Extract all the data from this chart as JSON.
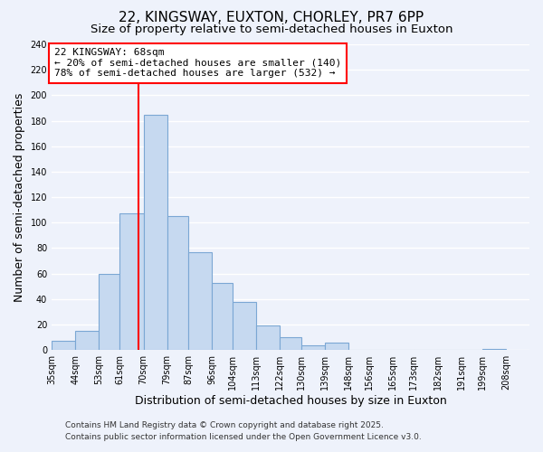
{
  "title1": "22, KINGSWAY, EUXTON, CHORLEY, PR7 6PP",
  "title2": "Size of property relative to semi-detached houses in Euxton",
  "xlabel": "Distribution of semi-detached houses by size in Euxton",
  "ylabel": "Number of semi-detached properties",
  "bar_left_edges": [
    35,
    44,
    53,
    61,
    70,
    79,
    87,
    96,
    104,
    113,
    122,
    130,
    139,
    148,
    156,
    165,
    173,
    182,
    191,
    199
  ],
  "bar_widths": [
    9,
    9,
    8,
    9,
    9,
    8,
    9,
    8,
    9,
    9,
    8,
    9,
    9,
    8,
    9,
    8,
    9,
    9,
    8,
    9
  ],
  "bar_heights": [
    7,
    15,
    60,
    107,
    185,
    105,
    77,
    53,
    38,
    19,
    10,
    4,
    6,
    0,
    0,
    0,
    0,
    0,
    0,
    1
  ],
  "bar_color": "#c6d9f0",
  "bar_edge_color": "#7ba7d4",
  "xtick_labels": [
    "35sqm",
    "44sqm",
    "53sqm",
    "61sqm",
    "70sqm",
    "79sqm",
    "87sqm",
    "96sqm",
    "104sqm",
    "113sqm",
    "122sqm",
    "130sqm",
    "139sqm",
    "148sqm",
    "156sqm",
    "165sqm",
    "173sqm",
    "182sqm",
    "191sqm",
    "199sqm",
    "208sqm"
  ],
  "xtick_positions": [
    35,
    44,
    53,
    61,
    70,
    79,
    87,
    96,
    104,
    113,
    122,
    130,
    139,
    148,
    156,
    165,
    173,
    182,
    191,
    199,
    208
  ],
  "ylim": [
    0,
    240
  ],
  "yticks": [
    0,
    20,
    40,
    60,
    80,
    100,
    120,
    140,
    160,
    180,
    200,
    220,
    240
  ],
  "xlim_left": 35,
  "xlim_right": 217,
  "red_line_x": 68,
  "annotation_title": "22 KINGSWAY: 68sqm",
  "annotation_line1": "← 20% of semi-detached houses are smaller (140)",
  "annotation_line2": "78% of semi-detached houses are larger (532) →",
  "footer1": "Contains HM Land Registry data © Crown copyright and database right 2025.",
  "footer2": "Contains public sector information licensed under the Open Government Licence v3.0.",
  "background_color": "#eef2fb",
  "plot_background": "#eef2fb",
  "grid_color": "#ffffff",
  "title_fontsize": 11,
  "subtitle_fontsize": 9.5,
  "axis_label_fontsize": 9,
  "tick_fontsize": 7,
  "annotation_fontsize": 8,
  "footer_fontsize": 6.5
}
